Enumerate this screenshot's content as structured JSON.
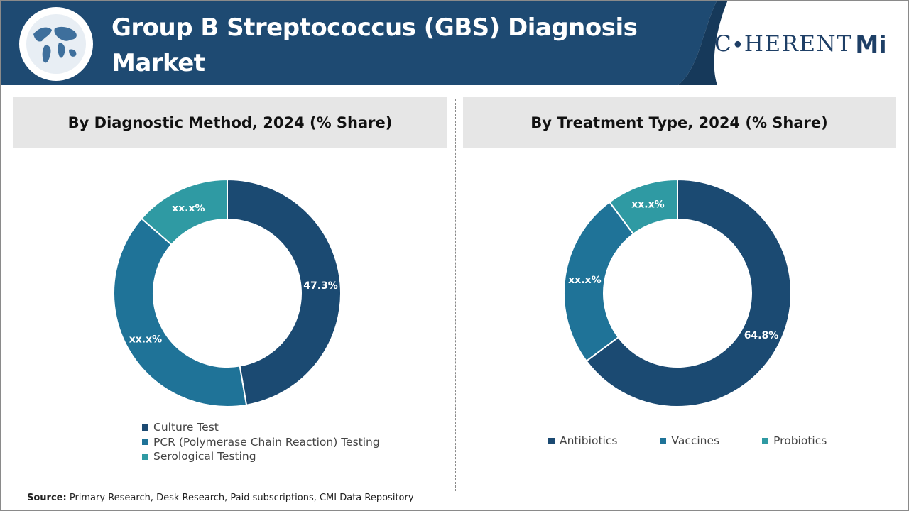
{
  "header": {
    "title": "Group B Streptococcus (GBS) Diagnosis Market",
    "logo_text": "C∙HERENT",
    "logo_mi": "Mi",
    "band_color": "#1e4a72"
  },
  "panels": {
    "left_title": "By Diagnostic Method, 2024 (% Share)",
    "right_title": "By Treatment Type, 2024 (% Share)"
  },
  "chart_data": [
    {
      "type": "pie",
      "variant": "donut",
      "title": "By Diagnostic Method, 2024 (% Share)",
      "categories": [
        "Culture Test",
        "PCR (Polymerase Chain Reaction) Testing",
        "Serological Testing"
      ],
      "values": [
        47.3,
        39.1,
        13.6
      ],
      "labels": [
        "47.3%",
        "xx.x%",
        "xx.x%"
      ],
      "colors": [
        "#1b4a72",
        "#1f7398",
        "#2f9aa3"
      ],
      "legend": "bottom-left"
    },
    {
      "type": "pie",
      "variant": "donut",
      "title": "By Treatment Type, 2024 (% Share)",
      "categories": [
        "Antibiotics",
        "Vaccines",
        "Probiotics"
      ],
      "values": [
        64.8,
        25.0,
        10.2
      ],
      "labels": [
        "64.8%",
        "xx.x%",
        "xx.x%"
      ],
      "colors": [
        "#1b4a72",
        "#1f7398",
        "#2f9aa3"
      ],
      "legend": "bottom"
    }
  ],
  "source": {
    "label": "Source:",
    "text": "Primary Research, Desk Research, Paid subscriptions, CMI Data Repository"
  }
}
